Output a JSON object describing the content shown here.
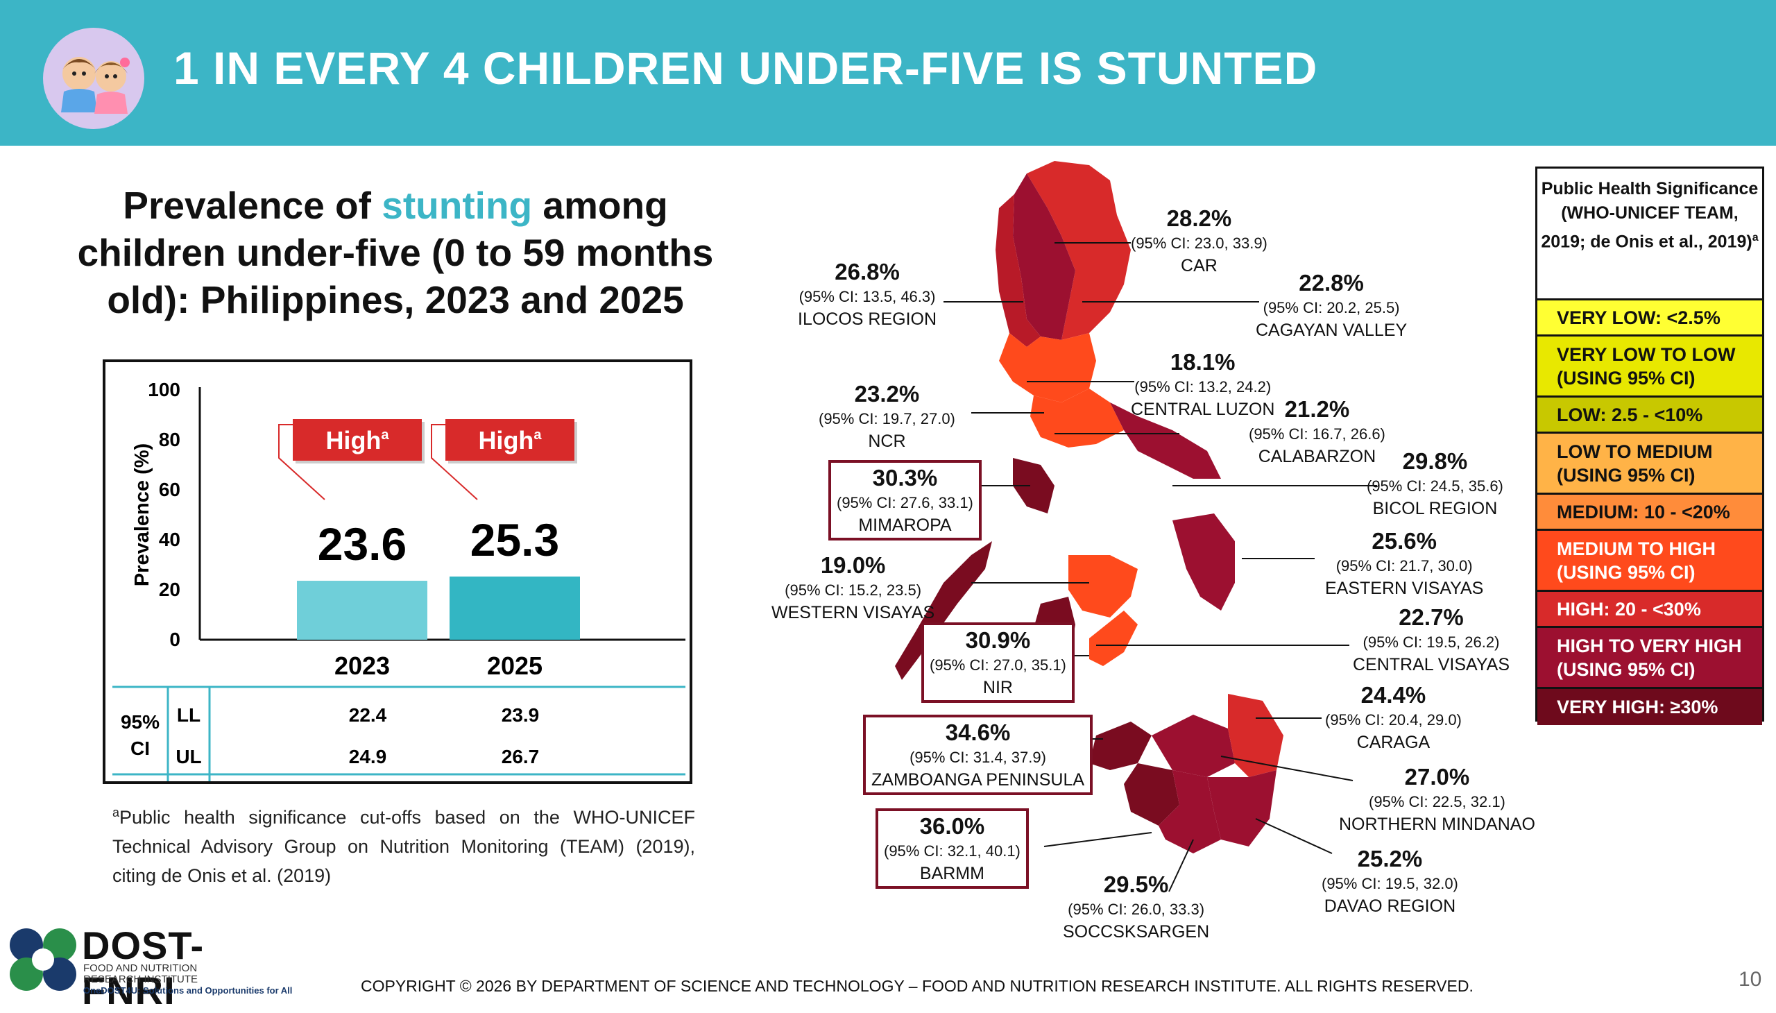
{
  "header": {
    "title": "1 IN EVERY 4 CHILDREN UNDER-FIVE IS STUNTED",
    "icon": "children-icon"
  },
  "left_title": {
    "part1": "Prevalence of ",
    "highlight": "stunting",
    "part2": " among children under-five (0 to 59 months old): Philippines, 2023 and 2025"
  },
  "chart_data": {
    "type": "bar",
    "categories": [
      "2023",
      "2025"
    ],
    "values": [
      23.6,
      25.3
    ],
    "bar_colors": [
      "#6fcfd9",
      "#33b6c3"
    ],
    "title": "",
    "xlabel": "",
    "ylabel": "Prevalence (%)",
    "ylim": [
      0,
      100
    ],
    "yticks": [
      0,
      20,
      40,
      60,
      80,
      100
    ],
    "grid": false,
    "annotations": [
      {
        "text": "High",
        "sup": "a",
        "category": "2023"
      },
      {
        "text": "High",
        "sup": "a",
        "category": "2025"
      }
    ],
    "ci_table": {
      "label": "95% CI",
      "rows": [
        {
          "label": "LL",
          "values": [
            22.4,
            23.9
          ]
        },
        {
          "label": "UL",
          "values": [
            24.9,
            26.7
          ]
        }
      ]
    }
  },
  "footnote": {
    "sup": "a",
    "text": "Public health significance cut-offs based on the WHO-UNICEF Technical Advisory Group on Nutrition Monitoring (TEAM) (2019), citing de Onis et al. (2019)"
  },
  "regions": [
    {
      "pct": "28.2%",
      "ci": "(95% CI: 23.0, 33.9)",
      "name": "CAR",
      "boxed": false
    },
    {
      "pct": "26.8%",
      "ci": "(95% CI: 13.5, 46.3)",
      "name": "ILOCOS REGION",
      "boxed": false
    },
    {
      "pct": "22.8%",
      "ci": "(95% CI: 20.2, 25.5)",
      "name": "CAGAYAN VALLEY",
      "boxed": false
    },
    {
      "pct": "18.1%",
      "ci": "(95% CI: 13.2, 24.2)",
      "name": "CENTRAL LUZON",
      "boxed": false
    },
    {
      "pct": "23.2%",
      "ci": "(95% CI: 19.7, 27.0)",
      "name": "NCR",
      "boxed": false
    },
    {
      "pct": "21.2%",
      "ci": "(95% CI: 16.7, 26.6)",
      "name": "CALABARZON",
      "boxed": false
    },
    {
      "pct": "30.3%",
      "ci": "(95% CI: 27.6, 33.1)",
      "name": "MIMAROPA",
      "boxed": true
    },
    {
      "pct": "29.8%",
      "ci": "(95% CI: 24.5, 35.6)",
      "name": "BICOL REGION",
      "boxed": false
    },
    {
      "pct": "19.0%",
      "ci": "(95% CI: 15.2, 23.5)",
      "name": "WESTERN VISAYAS",
      "boxed": false
    },
    {
      "pct": "25.6%",
      "ci": "(95% CI: 21.7, 30.0)",
      "name": "EASTERN VISAYAS",
      "boxed": false
    },
    {
      "pct": "30.9%",
      "ci": "(95% CI: 27.0, 35.1)",
      "name": "NIR",
      "boxed": true
    },
    {
      "pct": "22.7%",
      "ci": "(95% CI: 19.5, 26.2)",
      "name": "CENTRAL VISAYAS",
      "boxed": false
    },
    {
      "pct": "24.4%",
      "ci": "(95% CI: 20.4, 29.0)",
      "name": "CARAGA",
      "boxed": false
    },
    {
      "pct": "34.6%",
      "ci": "(95% CI: 31.4, 37.9)",
      "name": "ZAMBOANGA PENINSULA",
      "boxed": true
    },
    {
      "pct": "27.0%",
      "ci": "(95% CI: 22.5, 32.1)",
      "name": "NORTHERN MINDANAO",
      "boxed": false
    },
    {
      "pct": "36.0%",
      "ci": "(95% CI: 32.1, 40.1)",
      "name": "BARMM",
      "boxed": true
    },
    {
      "pct": "25.2%",
      "ci": "(95% CI: 19.5, 32.0)",
      "name": "DAVAO REGION",
      "boxed": false
    },
    {
      "pct": "29.5%",
      "ci": "(95% CI: 26.0, 33.3)",
      "name": "SOCCSKSARGEN",
      "boxed": false
    }
  ],
  "legend": {
    "title": "Public Health Significance (WHO-UNICEF TEAM, 2019; de Onis et al., 2019)",
    "title_sup": "a",
    "items": [
      {
        "label": "VERY LOW: <2.5%",
        "color": "#ffff33",
        "text_color": "#111111"
      },
      {
        "label": "VERY LOW TO LOW (USING 95% CI)",
        "color": "#e8e800",
        "text_color": "#111111"
      },
      {
        "label": "LOW: 2.5 - <10%",
        "color": "#c8c800",
        "text_color": "#111111"
      },
      {
        "label": "LOW TO MEDIUM (USING 95% CI)",
        "color": "#ffb347",
        "text_color": "#111111"
      },
      {
        "label": "MEDIUM: 10 - <20%",
        "color": "#ff8c3a",
        "text_color": "#111111"
      },
      {
        "label": "MEDIUM TO HIGH (USING 95% CI)",
        "color": "#ff4a1c",
        "text_color": "#ffffff"
      },
      {
        "label": "HIGH: 20 - <30%",
        "color": "#d82a2a",
        "text_color": "#ffffff"
      },
      {
        "label": "HIGH TO VERY HIGH (USING 95% CI)",
        "color": "#9c1030",
        "text_color": "#ffffff"
      },
      {
        "label": "VERY HIGH: ≥30%",
        "color": "#6e0a1c",
        "text_color": "#ffffff"
      }
    ]
  },
  "logo": {
    "name": "DOST-FNRI",
    "line1": "FOOD AND NUTRITION",
    "line2": "RESEARCH INSTITUTE",
    "tagline": "OneDOST4U: Solutions and Opportunities for All"
  },
  "copyright": "COPYRIGHT © 2026 BY DEPARTMENT OF SCIENCE AND TECHNOLOGY – FOOD AND NUTRITION RESEARCH INSTITUTE. ALL RIGHTS RESERVED.",
  "page_number": "10"
}
